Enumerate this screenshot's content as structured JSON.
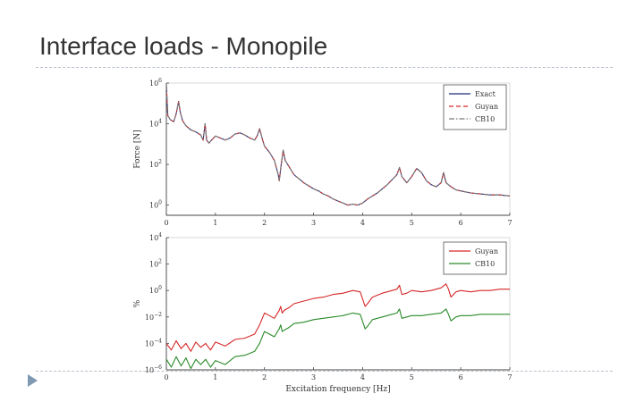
{
  "slide": {
    "title": "Interface loads - Monopile",
    "accent_color": "#7f99b3",
    "rule_color": "#b9c2cc"
  },
  "chart_data": [
    {
      "type": "line",
      "xlabel": "",
      "ylabel": "Force [N]",
      "xlim": [
        0,
        7
      ],
      "ylim_log10": [
        -0.5,
        6
      ],
      "y_scale": "log",
      "x_ticks": [
        "0",
        "1",
        "2",
        "3",
        "4",
        "5",
        "6",
        "7"
      ],
      "y_ticks": [
        {
          "base": "10",
          "exp": "0",
          "log10": 0
        },
        {
          "base": "10",
          "exp": "2",
          "log10": 2
        },
        {
          "base": "10",
          "exp": "4",
          "log10": 4
        },
        {
          "base": "10",
          "exp": "6",
          "log10": 6
        }
      ],
      "legend_position": "top-right",
      "series": [
        {
          "name": "Exact",
          "color": "#1f2a7a",
          "dash": "solid",
          "x": [
            0.0,
            0.03,
            0.08,
            0.15,
            0.2,
            0.25,
            0.28,
            0.33,
            0.4,
            0.5,
            0.6,
            0.7,
            0.75,
            0.79,
            0.82,
            0.87,
            0.92,
            1.0,
            1.1,
            1.2,
            1.3,
            1.4,
            1.5,
            1.6,
            1.7,
            1.8,
            1.85,
            1.9,
            1.95,
            2.0,
            2.1,
            2.2,
            2.28,
            2.3,
            2.34,
            2.38,
            2.42,
            2.5,
            2.6,
            2.7,
            2.8,
            2.9,
            3.0,
            3.1,
            3.2,
            3.3,
            3.4,
            3.5,
            3.6,
            3.7,
            3.8,
            3.9,
            4.0,
            4.1,
            4.2,
            4.3,
            4.4,
            4.5,
            4.6,
            4.7,
            4.75,
            4.8,
            4.9,
            5.0,
            5.1,
            5.2,
            5.3,
            5.4,
            5.5,
            5.6,
            5.65,
            5.7,
            5.8,
            5.9,
            6.0,
            6.2,
            6.4,
            6.6,
            6.8,
            7.0
          ],
          "y_log10": [
            5.9,
            4.4,
            4.2,
            4.1,
            4.5,
            5.1,
            4.6,
            4.15,
            3.9,
            3.7,
            3.6,
            3.45,
            3.2,
            4.0,
            3.2,
            3.05,
            3.2,
            3.4,
            3.3,
            3.2,
            3.3,
            3.5,
            3.55,
            3.45,
            3.3,
            3.2,
            3.4,
            3.75,
            3.3,
            2.9,
            2.6,
            2.2,
            1.5,
            1.2,
            2.0,
            2.7,
            2.2,
            1.9,
            1.5,
            1.3,
            1.1,
            0.95,
            0.8,
            0.7,
            0.55,
            0.45,
            0.3,
            0.2,
            0.1,
            0.0,
            0.05,
            0.0,
            0.1,
            0.3,
            0.45,
            0.6,
            0.8,
            1.0,
            1.25,
            1.5,
            1.85,
            1.4,
            1.1,
            1.4,
            1.8,
            1.6,
            1.2,
            1.0,
            0.9,
            1.1,
            1.6,
            1.1,
            0.9,
            0.75,
            0.7,
            0.6,
            0.55,
            0.5,
            0.5,
            0.45
          ]
        },
        {
          "name": "Guyan",
          "color": "#d62728",
          "dash": "dashed",
          "x": [
            0.0,
            0.03,
            0.08,
            0.15,
            0.2,
            0.25,
            0.28,
            0.33,
            0.4,
            0.5,
            0.6,
            0.7,
            0.75,
            0.79,
            0.82,
            0.87,
            0.92,
            1.0,
            1.1,
            1.2,
            1.3,
            1.4,
            1.5,
            1.6,
            1.7,
            1.8,
            1.85,
            1.9,
            1.95,
            2.0,
            2.1,
            2.2,
            2.28,
            2.3,
            2.34,
            2.38,
            2.42,
            2.5,
            2.6,
            2.7,
            2.8,
            2.9,
            3.0,
            3.1,
            3.2,
            3.3,
            3.4,
            3.5,
            3.6,
            3.7,
            3.8,
            3.9,
            4.0,
            4.1,
            4.2,
            4.3,
            4.4,
            4.5,
            4.6,
            4.7,
            4.75,
            4.8,
            4.9,
            5.0,
            5.1,
            5.2,
            5.3,
            5.4,
            5.5,
            5.6,
            5.65,
            5.7,
            5.8,
            5.9,
            6.0,
            6.2,
            6.4,
            6.6,
            6.8,
            7.0
          ],
          "y_log10": [
            5.9,
            4.4,
            4.2,
            4.1,
            4.5,
            5.1,
            4.6,
            4.15,
            3.9,
            3.7,
            3.6,
            3.45,
            3.2,
            4.0,
            3.2,
            3.05,
            3.2,
            3.4,
            3.3,
            3.2,
            3.3,
            3.5,
            3.55,
            3.45,
            3.3,
            3.2,
            3.4,
            3.75,
            3.3,
            2.9,
            2.6,
            2.2,
            1.5,
            1.2,
            2.0,
            2.7,
            2.2,
            1.9,
            1.5,
            1.3,
            1.1,
            0.95,
            0.8,
            0.7,
            0.55,
            0.45,
            0.3,
            0.2,
            0.1,
            0.0,
            0.05,
            0.0,
            0.1,
            0.3,
            0.45,
            0.6,
            0.8,
            1.0,
            1.25,
            1.5,
            1.85,
            1.4,
            1.1,
            1.4,
            1.8,
            1.6,
            1.2,
            1.0,
            0.9,
            1.1,
            1.6,
            1.1,
            0.9,
            0.75,
            0.7,
            0.6,
            0.55,
            0.5,
            0.5,
            0.45
          ]
        },
        {
          "name": "CB10",
          "color": "#7a7a7a",
          "dash": "dashdot",
          "x": [
            0.0,
            0.03,
            0.08,
            0.15,
            0.2,
            0.25,
            0.28,
            0.33,
            0.4,
            0.5,
            0.6,
            0.7,
            0.75,
            0.79,
            0.82,
            0.87,
            0.92,
            1.0,
            1.1,
            1.2,
            1.3,
            1.4,
            1.5,
            1.6,
            1.7,
            1.8,
            1.85,
            1.9,
            1.95,
            2.0,
            2.1,
            2.2,
            2.28,
            2.3,
            2.34,
            2.38,
            2.42,
            2.5,
            2.6,
            2.7,
            2.8,
            2.9,
            3.0,
            3.1,
            3.2,
            3.3,
            3.4,
            3.5,
            3.6,
            3.7,
            3.8,
            3.9,
            4.0,
            4.1,
            4.2,
            4.3,
            4.4,
            4.5,
            4.6,
            4.7,
            4.75,
            4.8,
            4.9,
            5.0,
            5.1,
            5.2,
            5.3,
            5.4,
            5.5,
            5.6,
            5.65,
            5.7,
            5.8,
            5.9,
            6.0,
            6.2,
            6.4,
            6.6,
            6.8,
            7.0
          ],
          "y_log10": [
            5.9,
            4.4,
            4.2,
            4.1,
            4.5,
            5.1,
            4.6,
            4.15,
            3.9,
            3.7,
            3.6,
            3.45,
            3.2,
            4.0,
            3.2,
            3.05,
            3.2,
            3.4,
            3.3,
            3.2,
            3.3,
            3.5,
            3.55,
            3.45,
            3.3,
            3.2,
            3.4,
            3.75,
            3.3,
            2.9,
            2.6,
            2.2,
            1.5,
            1.2,
            2.0,
            2.7,
            2.2,
            1.9,
            1.5,
            1.3,
            1.1,
            0.95,
            0.8,
            0.7,
            0.55,
            0.45,
            0.3,
            0.2,
            0.1,
            0.0,
            0.05,
            0.0,
            0.1,
            0.3,
            0.45,
            0.6,
            0.8,
            1.0,
            1.25,
            1.5,
            1.85,
            1.4,
            1.1,
            1.4,
            1.8,
            1.6,
            1.2,
            1.0,
            0.9,
            1.1,
            1.6,
            1.1,
            0.9,
            0.75,
            0.7,
            0.6,
            0.55,
            0.5,
            0.5,
            0.45
          ]
        }
      ]
    },
    {
      "type": "line",
      "xlabel": "Excitation frequency [Hz]",
      "ylabel": "%",
      "xlim": [
        0,
        7
      ],
      "ylim_log10": [
        -6,
        4
      ],
      "y_scale": "log",
      "x_ticks": [
        "0",
        "1",
        "2",
        "3",
        "4",
        "5",
        "6",
        "7"
      ],
      "y_ticks": [
        {
          "base": "10",
          "exp": "−6",
          "log10": -6
        },
        {
          "base": "10",
          "exp": "−4",
          "log10": -4
        },
        {
          "base": "10",
          "exp": "−2",
          "log10": -2
        },
        {
          "base": "10",
          "exp": "0",
          "log10": 0
        },
        {
          "base": "10",
          "exp": "2",
          "log10": 2
        },
        {
          "base": "10",
          "exp": "4",
          "log10": 4
        }
      ],
      "legend_position": "top-right",
      "series": [
        {
          "name": "Guyan",
          "color": "#d62728",
          "dash": "solid",
          "x": [
            0.0,
            0.1,
            0.2,
            0.3,
            0.4,
            0.5,
            0.6,
            0.7,
            0.8,
            0.9,
            1.0,
            1.2,
            1.4,
            1.6,
            1.8,
            1.9,
            2.0,
            2.1,
            2.2,
            2.3,
            2.33,
            2.36,
            2.4,
            2.5,
            2.6,
            2.8,
            3.0,
            3.2,
            3.4,
            3.6,
            3.8,
            3.95,
            4.05,
            4.1,
            4.2,
            4.4,
            4.6,
            4.7,
            4.75,
            4.8,
            4.9,
            5.0,
            5.2,
            5.4,
            5.6,
            5.7,
            5.75,
            5.8,
            5.9,
            6.0,
            6.2,
            6.4,
            6.6,
            6.8,
            7.0
          ],
          "y_log10": [
            -4.0,
            -4.5,
            -3.8,
            -4.4,
            -4.0,
            -4.6,
            -3.9,
            -4.3,
            -4.0,
            -4.5,
            -3.9,
            -4.2,
            -3.7,
            -3.6,
            -3.3,
            -2.6,
            -1.7,
            -1.9,
            -2.1,
            -1.5,
            -1.2,
            -1.7,
            -1.5,
            -1.3,
            -1.0,
            -0.8,
            -0.6,
            -0.5,
            -0.3,
            -0.2,
            0.0,
            -0.1,
            -1.2,
            -1.0,
            -0.5,
            -0.2,
            0.0,
            0.1,
            0.4,
            -0.3,
            -0.2,
            0.0,
            -0.1,
            0.0,
            0.2,
            0.5,
            0.1,
            -0.5,
            -0.1,
            0.0,
            -0.1,
            0.0,
            0.0,
            0.1,
            0.1
          ]
        },
        {
          "name": "CB10",
          "color": "#2a8a2a",
          "dash": "solid",
          "x": [
            0.0,
            0.1,
            0.2,
            0.3,
            0.4,
            0.5,
            0.6,
            0.7,
            0.8,
            0.9,
            1.0,
            1.2,
            1.4,
            1.6,
            1.8,
            1.9,
            2.0,
            2.1,
            2.2,
            2.3,
            2.33,
            2.36,
            2.4,
            2.5,
            2.6,
            2.8,
            3.0,
            3.2,
            3.4,
            3.6,
            3.8,
            3.95,
            4.05,
            4.1,
            4.2,
            4.4,
            4.6,
            4.7,
            4.75,
            4.8,
            4.9,
            5.0,
            5.2,
            5.4,
            5.6,
            5.7,
            5.75,
            5.8,
            5.9,
            6.0,
            6.2,
            6.4,
            6.6,
            6.8,
            7.0
          ],
          "y_log10": [
            -5.2,
            -5.8,
            -5.0,
            -5.7,
            -5.1,
            -5.9,
            -5.2,
            -5.6,
            -5.2,
            -5.8,
            -5.3,
            -5.6,
            -5.0,
            -4.9,
            -4.6,
            -4.0,
            -3.1,
            -3.3,
            -3.5,
            -2.9,
            -2.6,
            -3.1,
            -3.0,
            -2.8,
            -2.5,
            -2.4,
            -2.2,
            -2.1,
            -2.0,
            -1.9,
            -1.7,
            -1.8,
            -2.9,
            -2.7,
            -2.2,
            -2.0,
            -1.8,
            -1.7,
            -1.4,
            -2.1,
            -2.0,
            -1.9,
            -1.9,
            -1.8,
            -1.7,
            -1.4,
            -1.8,
            -2.3,
            -2.0,
            -1.9,
            -1.9,
            -1.8,
            -1.8,
            -1.8,
            -1.8
          ]
        }
      ]
    }
  ]
}
